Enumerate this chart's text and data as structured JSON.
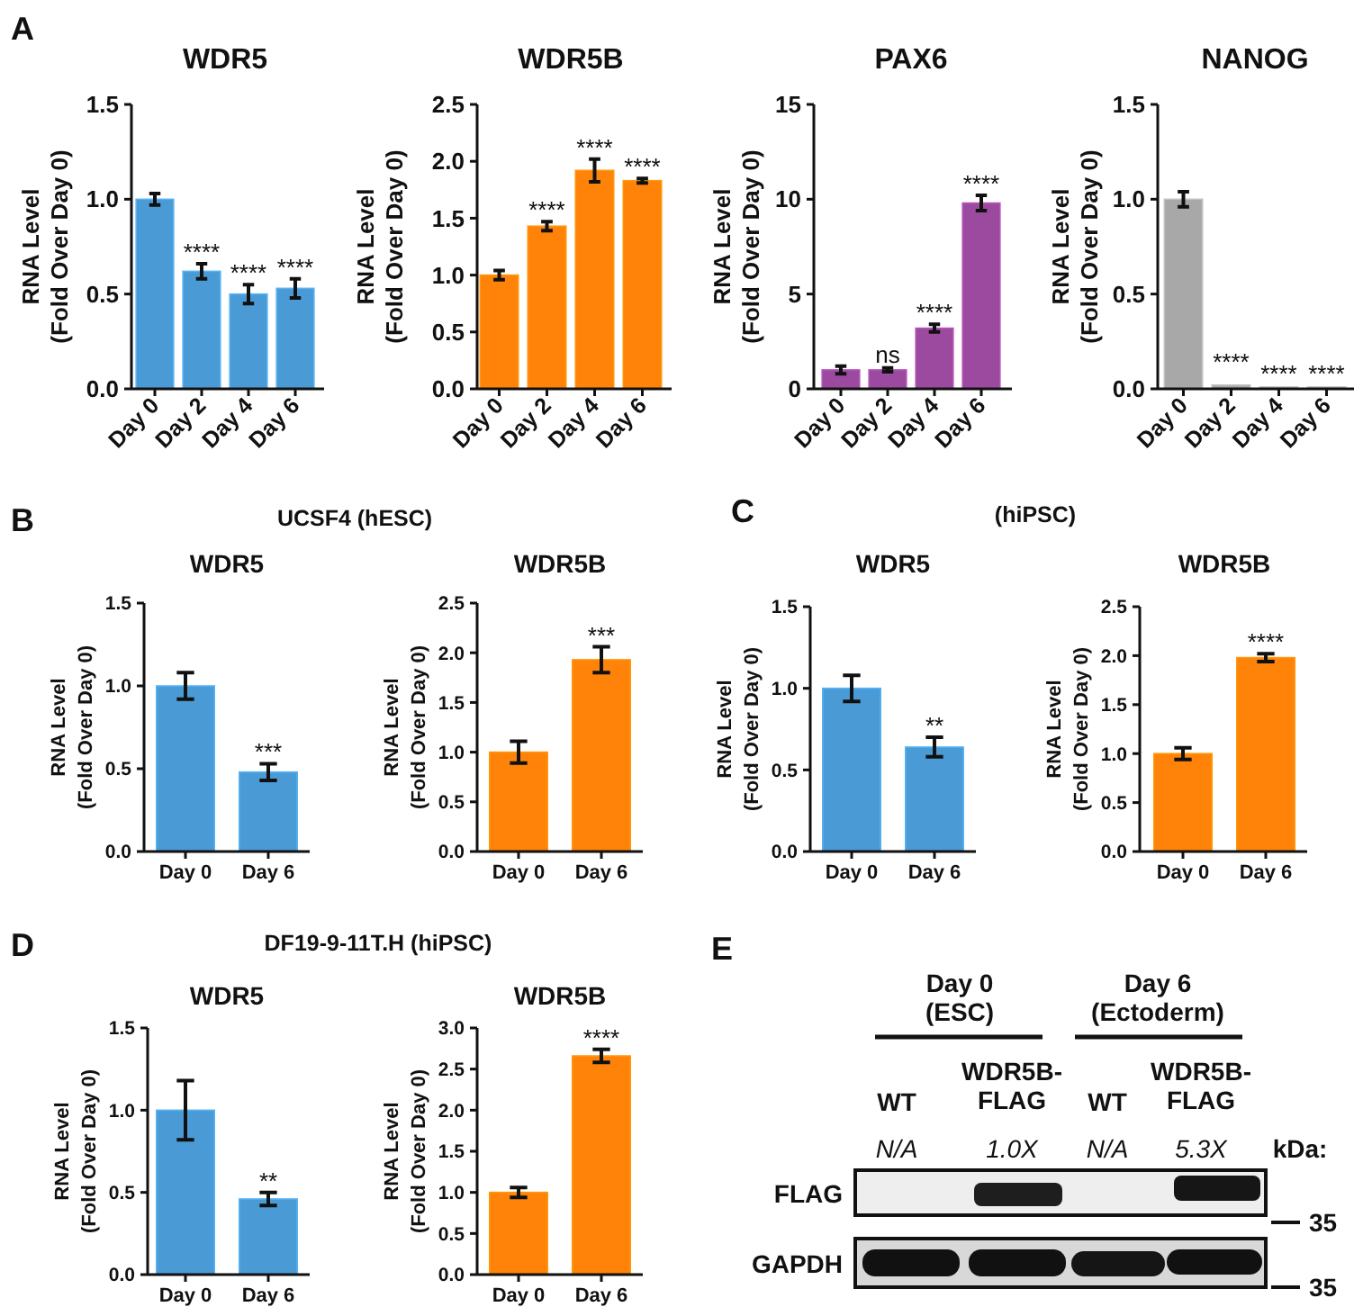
{
  "chart_data": [
    {
      "type": "bar",
      "title": "WDR5",
      "ylabel": "RNA Level\n(Fold Over Day 0)",
      "categories": [
        "Day 0",
        "Day 2",
        "Day 4",
        "Day 6"
      ],
      "values": [
        1.0,
        0.62,
        0.5,
        0.53
      ],
      "errors": [
        0.03,
        0.04,
        0.05,
        0.05
      ],
      "color": "#4a9bd5",
      "ylim": [
        0,
        1.5
      ],
      "yticks": [
        {
          "value": 0,
          "label": "0.0"
        },
        0.5,
        {
          "value": 1,
          "label": "1.0"
        },
        1.5
      ],
      "annotations": [
        "A",
        {
          "text": "****",
          "x": "Day 2",
          "y": 0.66
        },
        {
          "text": "****",
          "x": "Day 4",
          "y": 0.55
        },
        {
          "text": "****",
          "x": "Day 6",
          "y": 0.58
        }
      ]
    },
    {
      "type": "bar",
      "title": "WDR5B",
      "ylabel": "RNA Level\n(Fold Over Day 0)",
      "categories": [
        "Day 0",
        "Day 2",
        "Day 4",
        "Day 6"
      ],
      "values": [
        1.0,
        1.43,
        1.92,
        1.83
      ],
      "errors": [
        0.04,
        0.04,
        0.1,
        0.02
      ],
      "color": "#ff8308",
      "ylim": [
        0,
        2.5
      ],
      "yticks": [
        {
          "value": 0,
          "label": "0.0"
        },
        0.5,
        {
          "value": 1,
          "label": "1.0"
        },
        1.5,
        {
          "value": 2,
          "label": "2.0"
        },
        2.5
      ],
      "annotations": [
        {
          "text": "****",
          "x": "Day 2",
          "y": 1.47
        },
        {
          "text": "****",
          "x": "Day 4",
          "y": 2.02
        },
        {
          "text": "****",
          "x": "Day 6",
          "y": 1.85
        }
      ]
    },
    {
      "type": "bar",
      "title": "PAX6",
      "ylabel": "RNA Level\n(Fold Over Day 0)",
      "categories": [
        "Day 0",
        "Day 2",
        "Day 4",
        "Day 6"
      ],
      "values": [
        1.0,
        1.0,
        3.2,
        9.8
      ],
      "errors": [
        0.2,
        0.1,
        0.2,
        0.4
      ],
      "color": "#9c4aa0",
      "ylim": [
        0,
        15
      ],
      "yticks": [
        0,
        5,
        10,
        15
      ],
      "annotations": [
        {
          "text": "ns",
          "x": "Day 2",
          "y": 1.2
        },
        {
          "text": "****",
          "x": "Day 4",
          "y": 3.4
        },
        {
          "text": "****",
          "x": "Day 6",
          "y": 10.2
        }
      ]
    },
    {
      "type": "bar",
      "title": "NANOG",
      "ylabel": "RNA Level\n(Fold Over Day 0)",
      "categories": [
        "Day 0",
        "Day 2",
        "Day 4",
        "Day 6"
      ],
      "values": [
        1.0,
        0.02,
        0.01,
        0.01
      ],
      "errors": [
        0.04,
        null,
        null,
        null
      ],
      "color": "#a8a8a8",
      "ylim": [
        0,
        1.5
      ],
      "yticks": [
        {
          "value": 0,
          "label": "0.0"
        },
        0.5,
        {
          "value": 1,
          "label": "1.0"
        },
        1.5
      ],
      "annotations": [
        {
          "text": "****",
          "x": "Day 2",
          "y": 0.08
        },
        {
          "text": "****",
          "x": "Day 4",
          "y": 0.02
        },
        {
          "text": "****",
          "x": "Day 6",
          "y": 0.02
        }
      ]
    },
    {
      "type": "bar",
      "title": "WDR5",
      "ylabel": "RNA Level\n(Fold Over Day 0)",
      "categories": [
        "Day 0",
        "Day 6"
      ],
      "values": [
        1.0,
        0.48
      ],
      "errors": [
        0.08,
        0.05
      ],
      "color": "#4a9bd5",
      "ylim": [
        0,
        1.5
      ],
      "yticks": [
        {
          "value": 0,
          "label": "0.0"
        },
        0.5,
        {
          "value": 1,
          "label": "1.0"
        },
        1.5
      ],
      "annotations": [
        "B",
        "UCSF4 (hESC)",
        {
          "text": "***",
          "x": "Day 6",
          "y": 0.53
        }
      ]
    },
    {
      "type": "bar",
      "title": "WDR5B",
      "ylabel": "RNA Level\n(Fold Over Day 0)",
      "categories": [
        "Day 0",
        "Day 6"
      ],
      "values": [
        1.0,
        1.93
      ],
      "errors": [
        0.11,
        0.13
      ],
      "color": "#ff8308",
      "ylim": [
        0,
        2.5
      ],
      "yticks": [
        {
          "value": 0,
          "label": "0.0"
        },
        0.5,
        {
          "value": 1,
          "label": "1.0"
        },
        1.5,
        {
          "value": 2,
          "label": "2.0"
        },
        2.5
      ],
      "annotations": [
        {
          "text": "***",
          "x": "Day 6",
          "y": 2.06
        }
      ]
    },
    {
      "type": "bar",
      "title": "WDR5",
      "ylabel": "RNA Level\n(Fold Over Day 0)",
      "categories": [
        "Day 0",
        "Day 6"
      ],
      "values": [
        1.0,
        0.64
      ],
      "errors": [
        0.08,
        0.06
      ],
      "color": "#4a9bd5",
      "ylim": [
        0,
        1.5
      ],
      "yticks": [
        {
          "value": 0,
          "label": "0.0"
        },
        0.5,
        {
          "value": 1,
          "label": "1.0"
        },
        1.5
      ],
      "annotations": [
        "C",
        "(hiPSC)",
        {
          "text": "**",
          "x": "Day 6",
          "y": 0.7
        }
      ]
    },
    {
      "type": "bar",
      "title": "WDR5B",
      "ylabel": "RNA Level\n(Fold Over Day 0)",
      "categories": [
        "Day 0",
        "Day 6"
      ],
      "values": [
        1.0,
        1.98
      ],
      "errors": [
        0.06,
        0.04
      ],
      "color": "#ff8308",
      "ylim": [
        0,
        2.5
      ],
      "yticks": [
        {
          "value": 0,
          "label": "0.0"
        },
        0.5,
        {
          "value": 1,
          "label": "1.0"
        },
        1.5,
        {
          "value": 2,
          "label": "2.0"
        },
        2.5
      ],
      "annotations": [
        {
          "text": "****",
          "x": "Day 6",
          "y": 2.02
        }
      ]
    },
    {
      "type": "bar",
      "title": "WDR5",
      "ylabel": "RNA Level\n(Fold Over Day 0)",
      "categories": [
        "Day 0",
        "Day 6"
      ],
      "values": [
        1.0,
        0.46
      ],
      "errors": [
        0.18,
        0.04
      ],
      "color": "#4a9bd5",
      "ylim": [
        0,
        1.5
      ],
      "yticks": [
        {
          "value": 0,
          "label": "0.0"
        },
        0.5,
        {
          "value": 1,
          "label": "1.0"
        },
        1.5
      ],
      "annotations": [
        "D",
        "DF19-9-11T.H (hiPSC)",
        {
          "text": "**",
          "x": "Day 6",
          "y": 0.5
        }
      ]
    },
    {
      "type": "bar",
      "title": "WDR5B",
      "ylabel": "RNA Level\n(Fold Over Day 0)",
      "categories": [
        "Day 0",
        "Day 6"
      ],
      "values": [
        1.0,
        2.66
      ],
      "errors": [
        0.06,
        0.08
      ],
      "color": "#ff8308",
      "ylim": [
        0,
        3
      ],
      "yticks": [
        {
          "value": 0,
          "label": "0.0"
        },
        0.5,
        {
          "value": 1,
          "label": "1.0"
        },
        1.5,
        {
          "value": 2,
          "label": "2.0"
        },
        2.5,
        {
          "value": 3,
          "label": "3.0"
        }
      ],
      "annotations": [
        {
          "text": "****",
          "x": "Day 6",
          "y": 2.74
        }
      ]
    },
    {
      "type": "other",
      "annotations": [
        "E",
        "Day 0\n(ESC)",
        "Day 6\n(Ectoderm)",
        "WT",
        "WDR5B-\nFLAG",
        "WT",
        "WDR5B-\nFLAG",
        "N/A",
        "1.0X",
        "N/A",
        "5.3X",
        "kDa:",
        "FLAG",
        "GAPDH",
        "35",
        "35"
      ]
    }
  ]
}
